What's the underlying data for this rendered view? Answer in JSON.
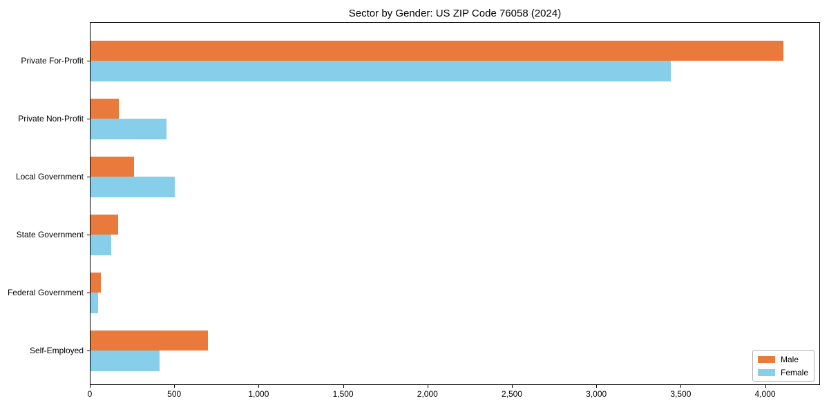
{
  "chart_data": {
    "type": "bar",
    "orientation": "horizontal",
    "title": "Sector by Gender: US ZIP Code 76058 (2024)",
    "categories": [
      "Private For-Profit",
      "Private Non-Profit",
      "Local Government",
      "State Government",
      "Federal Government",
      "Self-Employed"
    ],
    "series": [
      {
        "name": "Male",
        "color": "#E97A3C",
        "values": [
          4110,
          170,
          260,
          165,
          60,
          695
        ]
      },
      {
        "name": "Female",
        "color": "#87CEEB",
        "values": [
          3445,
          450,
          500,
          125,
          45,
          410
        ]
      }
    ],
    "xlabel": "",
    "ylabel": "",
    "xlim": [
      0,
      4325
    ],
    "xticks": [
      0,
      500,
      1000,
      1500,
      2000,
      2500,
      3000,
      3500,
      4000
    ],
    "xtick_labels": [
      "0",
      "500",
      "1,000",
      "1,500",
      "2,000",
      "2,500",
      "3,000",
      "3,500",
      "4,000"
    ],
    "grid": false,
    "legend_position": "lower right"
  }
}
